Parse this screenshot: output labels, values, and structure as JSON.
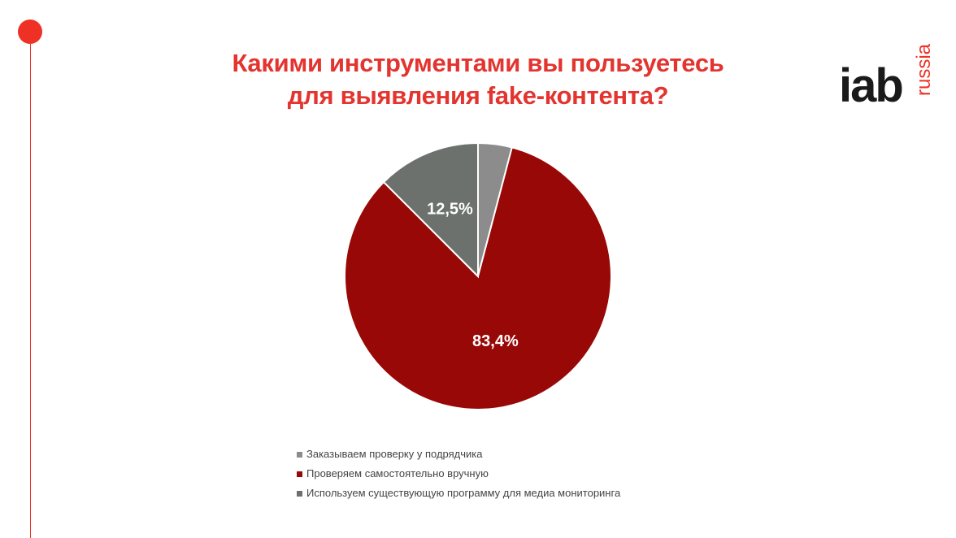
{
  "title_line1": "Какими инструментами вы пользуетесь",
  "title_line2": "для выявления fake-контента?",
  "logo": {
    "main": "iab",
    "sub": "russia"
  },
  "colors": {
    "accent": "#ee3124",
    "title": "#e3342f"
  },
  "chart_data": {
    "type": "pie",
    "title": "Какими инструментами вы пользуетесь для выявления fake-контента?",
    "series": [
      {
        "name": "Заказываем проверку у подрядчика",
        "value": 4.1,
        "color": "#8c8c8c",
        "label": ""
      },
      {
        "name": "Проверяем самостоятельно вручную",
        "value": 83.4,
        "color": "#980806",
        "label": "83,4%"
      },
      {
        "name": "Используем существующую программу для медиа мониторинга",
        "value": 12.5,
        "color": "#6c716e",
        "label": "12,5%"
      }
    ],
    "legend_position": "bottom"
  }
}
